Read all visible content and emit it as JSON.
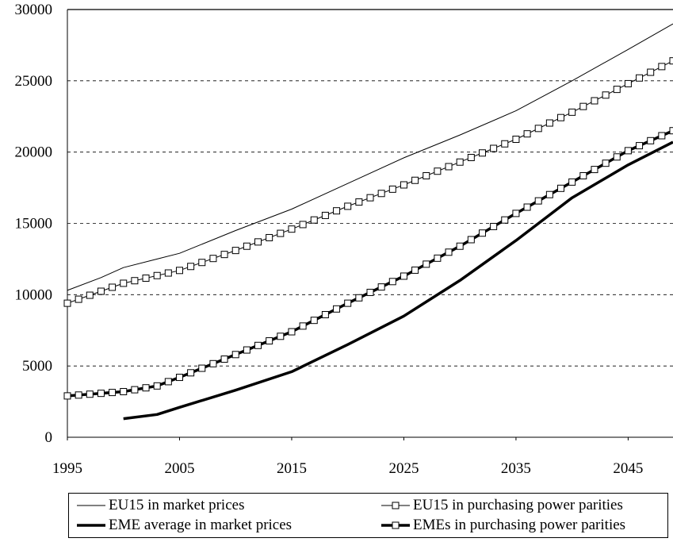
{
  "chart_data": {
    "type": "line",
    "title": "",
    "xlabel": "",
    "ylabel": "",
    "xlim": [
      1995,
      2049
    ],
    "ylim": [
      0,
      30000
    ],
    "x_ticks": [
      "1995",
      "2005",
      "2015",
      "2025",
      "2035",
      "2045"
    ],
    "y_ticks": [
      "0",
      "5000",
      "10000",
      "15000",
      "20000",
      "25000",
      "30000"
    ],
    "grid": "horizontal dashed",
    "legend_position": "bottom",
    "series": [
      {
        "name": "EU15 in market prices",
        "style": "thin",
        "x": [
          1995,
          1998,
          2000,
          2003,
          2005,
          2010,
          2015,
          2020,
          2025,
          2030,
          2035,
          2040,
          2045,
          2049
        ],
        "y": [
          10300,
          11200,
          11900,
          12500,
          12900,
          14500,
          16000,
          17800,
          19600,
          21200,
          22900,
          25000,
          27200,
          29000
        ]
      },
      {
        "name": "EU15 in purchasing power parities",
        "style": "square-markers",
        "x": [
          1995,
          2000,
          2005,
          2010,
          2015,
          2020,
          2025,
          2030,
          2035,
          2040,
          2045,
          2049
        ],
        "y": [
          9400,
          10800,
          11700,
          13100,
          14600,
          16200,
          17700,
          19300,
          20900,
          22800,
          24800,
          26400
        ]
      },
      {
        "name": "EME average in market prices",
        "style": "thick",
        "x": [
          2000,
          2003,
          2005,
          2010,
          2015,
          2020,
          2025,
          2030,
          2035,
          2040,
          2045,
          2049
        ],
        "y": [
          1300,
          1600,
          2100,
          3300,
          4600,
          6500,
          8500,
          11000,
          13800,
          16800,
          19100,
          20700
        ]
      },
      {
        "name": "EMEs in purchasing power parities",
        "style": "thick-square-markers",
        "x": [
          1995,
          2000,
          2003,
          2005,
          2010,
          2015,
          2020,
          2025,
          2030,
          2035,
          2040,
          2045,
          2049
        ],
        "y": [
          2900,
          3200,
          3600,
          4200,
          5800,
          7400,
          9400,
          11300,
          13400,
          15700,
          17900,
          20100,
          21500
        ]
      }
    ]
  }
}
